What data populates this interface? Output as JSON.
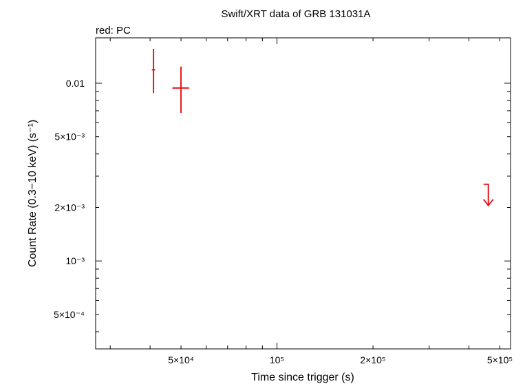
{
  "chart_data": {
    "type": "scatter",
    "title": "Swift/XRT data of GRB 131031A",
    "subtitle": "red: PC",
    "xlabel": "Time since trigger (s)",
    "ylabel": "Count Rate (0.3−10 keV) (s⁻¹)",
    "xscale": "log",
    "yscale": "log",
    "xlim": [
      27000,
      540000
    ],
    "ylim": [
      0.00032,
      0.018
    ],
    "x_ticks": [
      {
        "value": 50000,
        "label": "5×10⁴"
      },
      {
        "value": 100000,
        "label": "10⁵"
      },
      {
        "value": 200000,
        "label": "2×10⁵"
      },
      {
        "value": 500000,
        "label": "5×10⁵"
      }
    ],
    "y_ticks": [
      {
        "value": 0.0005,
        "label": "5×10⁻⁴"
      },
      {
        "value": 0.001,
        "label": "10⁻³"
      },
      {
        "value": 0.002,
        "label": "2×10⁻³"
      },
      {
        "value": 0.005,
        "label": "5×10⁻³"
      },
      {
        "value": 0.01,
        "label": "0.01"
      }
    ],
    "series": [
      {
        "color": "#e8141c",
        "points": [
          {
            "x": 41000,
            "x_lo": 40500,
            "x_hi": 41500,
            "y": 0.0119,
            "y_lo": 0.0088,
            "y_hi": 0.0156
          },
          {
            "x": 50000,
            "x_lo": 47000,
            "x_hi": 53000,
            "y": 0.0094,
            "y_lo": 0.0068,
            "y_hi": 0.0124
          }
        ],
        "upper_limits": [
          {
            "x": 460000,
            "y": 0.0027,
            "y_to": 0.00205
          }
        ]
      }
    ],
    "grid": false,
    "legend": "none"
  }
}
